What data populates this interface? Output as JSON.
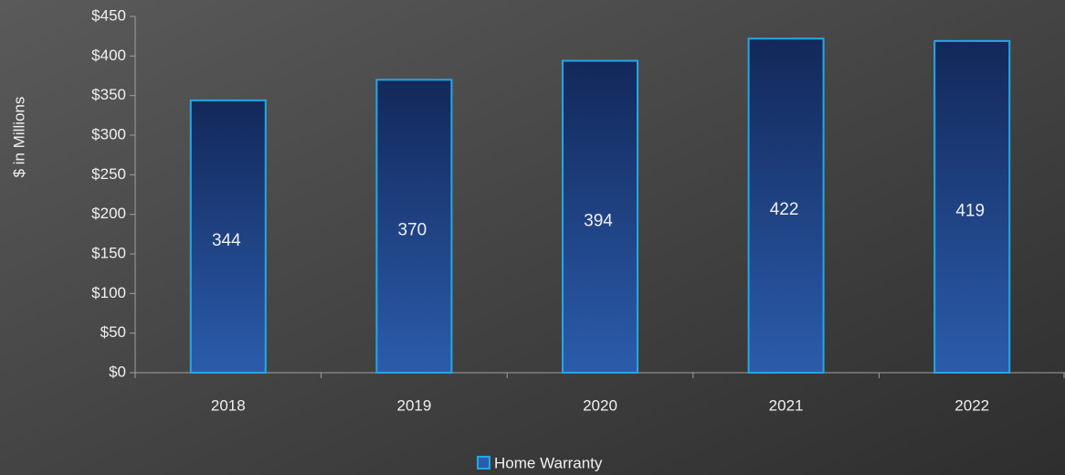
{
  "chart_data": {
    "type": "bar",
    "y_label": "$ in Millions",
    "categories": [
      "2018",
      "2019",
      "2020",
      "2021",
      "2022"
    ],
    "series": [
      {
        "name": "Home Warranty",
        "color": "#2b5cab",
        "values": [
          344,
          370,
          394,
          422,
          419
        ]
      }
    ],
    "ylim": [
      0,
      450
    ],
    "yticks": [
      {
        "value": 0,
        "label": "$0"
      },
      {
        "value": 50,
        "label": "$50"
      },
      {
        "value": 100,
        "label": "$100"
      },
      {
        "value": 150,
        "label": "$150"
      },
      {
        "value": 200,
        "label": "$200"
      },
      {
        "value": 250,
        "label": "$250"
      },
      {
        "value": 300,
        "label": "$300"
      },
      {
        "value": 350,
        "label": "$350"
      },
      {
        "value": 400,
        "label": "$400"
      },
      {
        "value": 450,
        "label": "$450"
      }
    ],
    "legend": "bottom"
  }
}
